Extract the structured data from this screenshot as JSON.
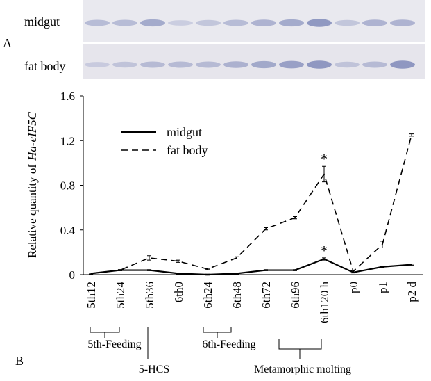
{
  "figure": {
    "panel_a_label": "A",
    "panel_b_label": "B",
    "blot_labels": [
      "midgut",
      "fat body"
    ],
    "stage_groups": [
      "5th-Feeding",
      "5-HCS",
      "6th-Feeding",
      "Metamorphic molting"
    ]
  },
  "chart_data": {
    "type": "line",
    "ylabel": "Relative quantity of",
    "ylabel_gene": "Ha-eIF5C",
    "categories": [
      "5th12",
      "5th24",
      "5th36",
      "6th0",
      "6th24",
      "6th48",
      "6th72",
      "6th96",
      "6th120 h",
      "p0",
      "p1",
      "p2 d"
    ],
    "series": [
      {
        "name": "midgut",
        "color": "#000000",
        "dash": false,
        "values": [
          0.01,
          0.04,
          0.04,
          0.01,
          0.0,
          0.01,
          0.04,
          0.04,
          0.14,
          0.02,
          0.07,
          0.09
        ],
        "errors": [
          0.005,
          0.005,
          0.005,
          0.005,
          0.005,
          0.005,
          0.005,
          0.005,
          0.01,
          0.005,
          0.005,
          0.005
        ]
      },
      {
        "name": "fat body",
        "color": "#000000",
        "dash": true,
        "values": [
          0.01,
          0.04,
          0.15,
          0.12,
          0.05,
          0.15,
          0.41,
          0.51,
          0.9,
          0.03,
          0.27,
          1.25
        ],
        "errors": [
          0.005,
          0.005,
          0.02,
          0.01,
          0.005,
          0.01,
          0.01,
          0.01,
          0.07,
          0.005,
          0.03,
          0.01
        ]
      }
    ],
    "annotations": [
      {
        "text": "*",
        "category": "6th120 h",
        "series": "fat body"
      },
      {
        "text": "*",
        "category": "6th120 h",
        "series": "midgut"
      }
    ],
    "ylim": [
      0,
      1.6
    ],
    "yticks": [
      0,
      0.4,
      0.8,
      1.2,
      1.6
    ],
    "grid": false,
    "legend": "upper left"
  }
}
